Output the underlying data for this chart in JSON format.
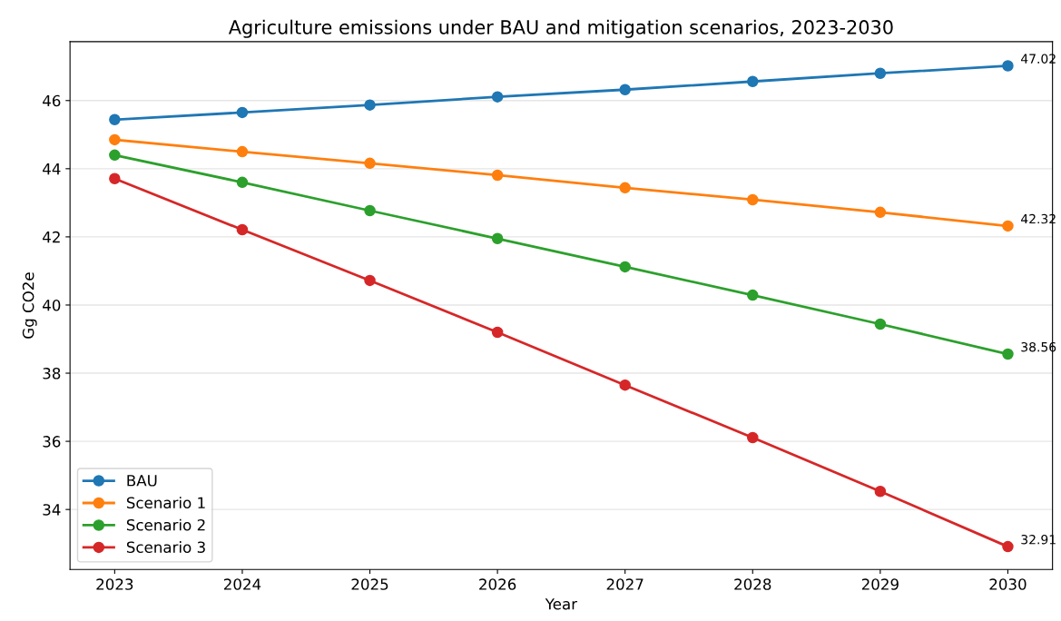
{
  "chart_data": {
    "type": "line",
    "title": "Agriculture emissions under BAU and mitigation scenarios, 2023-2030",
    "xlabel": "Year",
    "ylabel": "Gg CO2e",
    "x": [
      2023,
      2024,
      2025,
      2026,
      2027,
      2028,
      2029,
      2030
    ],
    "series": [
      {
        "name": "BAU",
        "color": "#1f77b4",
        "values": [
          45.44,
          45.65,
          45.87,
          46.11,
          46.32,
          46.56,
          46.8,
          47.02
        ],
        "value_labels": [
          null,
          null,
          null,
          null,
          null,
          null,
          null,
          "47.02"
        ]
      },
      {
        "name": "Scenario 1",
        "color": "#ff7f0e",
        "values": [
          44.85,
          44.5,
          44.16,
          43.81,
          43.44,
          43.09,
          42.72,
          42.32
        ],
        "value_labels": [
          null,
          null,
          null,
          null,
          null,
          null,
          null,
          "42.32"
        ]
      },
      {
        "name": "Scenario 2",
        "color": "#2ca02c",
        "values": [
          44.4,
          43.6,
          42.77,
          41.95,
          41.12,
          40.29,
          39.44,
          38.56
        ],
        "value_labels": [
          null,
          null,
          null,
          null,
          null,
          null,
          null,
          "38.56"
        ]
      },
      {
        "name": "Scenario 3",
        "color": "#d62728",
        "values": [
          43.71,
          42.21,
          40.72,
          39.2,
          37.65,
          36.11,
          34.53,
          32.91
        ],
        "value_labels": [
          null,
          null,
          null,
          null,
          null,
          null,
          null,
          "32.91"
        ]
      }
    ],
    "xlim": [
      2022.65,
      2030.35
    ],
    "xticks": [
      2023,
      2024,
      2025,
      2026,
      2027,
      2028,
      2029,
      2030
    ],
    "ylim": [
      32.24,
      47.73
    ],
    "yticks": [
      34,
      36,
      38,
      40,
      42,
      44,
      46
    ],
    "grid": "y",
    "legend": "bottom left",
    "marker": "circle",
    "line_style": "solid"
  }
}
